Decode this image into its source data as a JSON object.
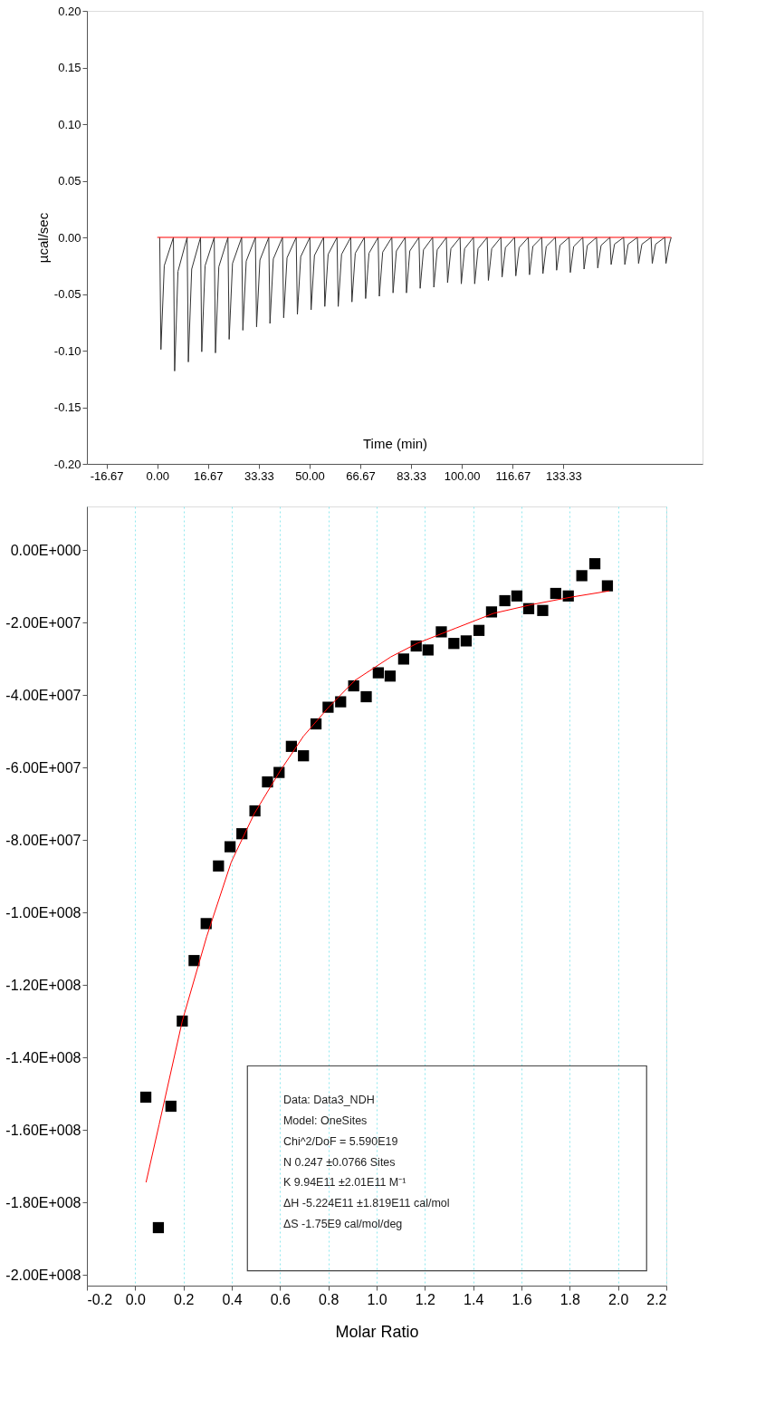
{
  "chart_data": [
    {
      "type": "line",
      "xlabel": "Time (min)",
      "ylabel": "µcal/sec",
      "grid": false,
      "xlim": [
        -23.1,
        179
      ],
      "ylim": [
        -0.2,
        0.2
      ],
      "xticks": [
        -16.67,
        {
          "value": 0,
          "label": "0.00"
        },
        16.67,
        33.33,
        {
          "value": 50,
          "label": "50.00"
        },
        66.67,
        83.33,
        {
          "value": 100,
          "label": "100.00"
        },
        116.67,
        133.33
      ],
      "yticks": [
        {
          "value": -0.2,
          "label": "-0.20"
        },
        {
          "value": -0.15,
          "label": "-0.15"
        },
        {
          "value": -0.1,
          "label": "-0.10"
        },
        {
          "value": -0.05,
          "label": "-0.05"
        },
        {
          "value": 0,
          "label": "0.00"
        },
        {
          "value": 0.05,
          "label": "0.05"
        },
        {
          "value": 0.1,
          "label": "0.10"
        },
        {
          "value": 0.15,
          "label": "0.15"
        },
        {
          "value": 0.2,
          "label": "0.20"
        }
      ],
      "series": [
        {
          "color": "#333333",
          "x": [
            0.8,
            1.2,
            2.3,
            5.3,
            5.7,
            6.8,
            9.8,
            10.2,
            11.3,
            14.2,
            14.6,
            15.7,
            18.7,
            19.1,
            20.2,
            23.2,
            23.6,
            24.7,
            27.7,
            28.1,
            29.2,
            32.2,
            32.6,
            33.7,
            36.6,
            37.0,
            38.1,
            41.1,
            41.5,
            42.6,
            45.6,
            46.0,
            47.1,
            50.1,
            50.5,
            51.6,
            54.6,
            55.0,
            56.1,
            59.0,
            59.4,
            60.5,
            63.5,
            63.9,
            65.0,
            68.0,
            68.4,
            69.5,
            72.5,
            72.9,
            74.0,
            77.0,
            77.4,
            78.5,
            81.4,
            81.8,
            82.9,
            85.9,
            86.3,
            87.4,
            90.4,
            90.8,
            91.9,
            94.9,
            95.3,
            96.4,
            99.4,
            99.8,
            100.9,
            103.8,
            104.2,
            105.3,
            108.3,
            108.7,
            109.8,
            112.8,
            113.2,
            114.3,
            117.3,
            117.7,
            118.8,
            121.8,
            122.2,
            123.3,
            126.2,
            126.6,
            127.7,
            130.7,
            131.1,
            132.2,
            135.2,
            135.6,
            136.7,
            139.7,
            140.1,
            141.2,
            144.2,
            144.6,
            145.7,
            148.6,
            149.0,
            150.1,
            153.1,
            153.5,
            154.6,
            157.6,
            158.0,
            159.1,
            162.1,
            162.5,
            163.6,
            166.6,
            167.0,
            168.1,
            168.7
          ],
          "values": [
            0,
            -0.099,
            -0.025,
            0,
            -0.118,
            -0.03,
            0,
            -0.11,
            -0.028,
            0,
            -0.101,
            -0.025,
            0,
            -0.102,
            -0.026,
            0,
            -0.09,
            -0.023,
            0,
            -0.082,
            -0.021,
            0,
            -0.079,
            -0.02,
            0,
            -0.076,
            -0.019,
            0,
            -0.071,
            -0.018,
            0,
            -0.068,
            -0.017,
            0,
            -0.064,
            -0.016,
            0,
            -0.061,
            -0.015,
            0,
            -0.061,
            -0.015,
            0,
            -0.057,
            -0.014,
            0,
            -0.054,
            -0.014,
            0,
            -0.052,
            -0.013,
            0,
            -0.049,
            -0.012,
            0,
            -0.049,
            -0.012,
            0,
            -0.045,
            -0.011,
            0,
            -0.044,
            -0.011,
            0,
            -0.04,
            -0.01,
            0,
            -0.041,
            -0.01,
            0,
            -0.041,
            -0.01,
            0,
            -0.038,
            -0.01,
            0,
            -0.035,
            -0.009,
            0,
            -0.034,
            -0.009,
            0,
            -0.033,
            -0.008,
            0,
            -0.032,
            -0.008,
            0,
            -0.029,
            -0.007,
            0,
            -0.031,
            -0.008,
            0,
            -0.028,
            -0.007,
            0,
            -0.027,
            -0.007,
            0,
            -0.024,
            -0.006,
            0,
            -0.024,
            -0.006,
            0,
            -0.023,
            -0.006,
            0,
            -0.023,
            -0.006,
            0,
            -0.023,
            -0.006,
            0
          ]
        },
        {
          "color": "#ff0000",
          "x": [
            0,
            168.7
          ],
          "values": [
            0,
            0
          ]
        }
      ]
    },
    {
      "type": "scatter",
      "xlabel": "Molar Ratio",
      "grid": "x",
      "xlim": [
        -0.2,
        2.2
      ],
      "ylim": [
        -203000000,
        12000000
      ],
      "xticks": [
        -0.2,
        {
          "value": 0,
          "label": "0.0"
        },
        0.2,
        0.4,
        0.6,
        0.8,
        {
          "value": 1,
          "label": "1.0"
        },
        1.2,
        1.4,
        1.6,
        1.8,
        {
          "value": 2,
          "label": "2.0"
        },
        2.2
      ],
      "yticks": [
        {
          "value": 0,
          "label": "0.00E+000"
        },
        {
          "value": -20000000,
          "label": "-2.00E+007"
        },
        {
          "value": -40000000,
          "label": "-4.00E+007"
        },
        {
          "value": -60000000,
          "label": "-6.00E+007"
        },
        {
          "value": -80000000,
          "label": "-8.00E+007"
        },
        {
          "value": -100000000,
          "label": "-1.00E+008"
        },
        {
          "value": -120000000,
          "label": "-1.20E+008"
        },
        {
          "value": -140000000,
          "label": "-1.40E+008"
        },
        {
          "value": -160000000,
          "label": "-1.60E+008"
        },
        {
          "value": -180000000,
          "label": "-1.80E+008"
        },
        {
          "value": -200000000,
          "label": "-2.00E+008"
        }
      ],
      "series": [
        {
          "type": "scatter",
          "color": "#000000",
          "marker": "square",
          "x": [
            0.044,
            0.096,
            0.148,
            0.195,
            0.244,
            0.294,
            0.345,
            0.393,
            0.442,
            0.496,
            0.548,
            0.596,
            0.647,
            0.697,
            0.749,
            0.799,
            0.851,
            0.905,
            0.957,
            1.007,
            1.056,
            1.112,
            1.164,
            1.213,
            1.268,
            1.32,
            1.371,
            1.424,
            1.476,
            1.531,
            1.581,
            1.63,
            1.688,
            1.742,
            1.794,
            1.85,
            1.904,
            1.956
          ],
          "values": [
            -151000000.0,
            -187000000.0,
            -153500000.0,
            -130000000.0,
            -113300000.0,
            -103100000.0,
            -87200000.0,
            -81900000.0,
            -78300000.0,
            -72000000.0,
            -64000000.0,
            -61400000.0,
            -54200000.0,
            -56800000.0,
            -48000000.0,
            -43400000.0,
            -41900000.0,
            -37500000.0,
            -40500000.0,
            -33900000.0,
            -34800000.0,
            -30100000.0,
            -26500000.0,
            -27600000.0,
            -22600000.0,
            -25800000.0,
            -25100000.0,
            -22200000.0,
            -17100000.0,
            -14000000.0,
            -12700000.0,
            -16200000.0,
            -16700000.0,
            -12000000.0,
            -12700000.0,
            -7100000.0,
            -3800000.0,
            -9900000.0
          ]
        },
        {
          "type": "line",
          "color": "#ff0000",
          "x": [
            0.045,
            0.099,
            0.195,
            0.296,
            0.398,
            0.493,
            0.6,
            0.697,
            0.8,
            0.91,
            1.059,
            1.17,
            1.327,
            1.484,
            1.641,
            1.799,
            1.964
          ],
          "values": [
            -174500000.0,
            -158600000.0,
            -130000000.0,
            -106700000.0,
            -86100000.0,
            -72800000.0,
            -61000000.0,
            -51400000.0,
            -43500000.0,
            -36000000.0,
            -29500000.0,
            -25700000.0,
            -21600000.0,
            -17500000.0,
            -15100000.0,
            -13100000.0,
            -11300000.0
          ]
        }
      ],
      "annotations": [
        "Data: Data3_NDH",
        "Model: OneSites",
        "Chi^2/DoF = 5.590E19",
        "N 0.247 ±0.0766 Sites",
        "K 9.94E11 ±2.01E11 M⁻¹",
        "ΔH -5.224E11 ±1.819E11 cal/mol",
        "ΔS -1.75E9 cal/mol/deg"
      ]
    }
  ]
}
